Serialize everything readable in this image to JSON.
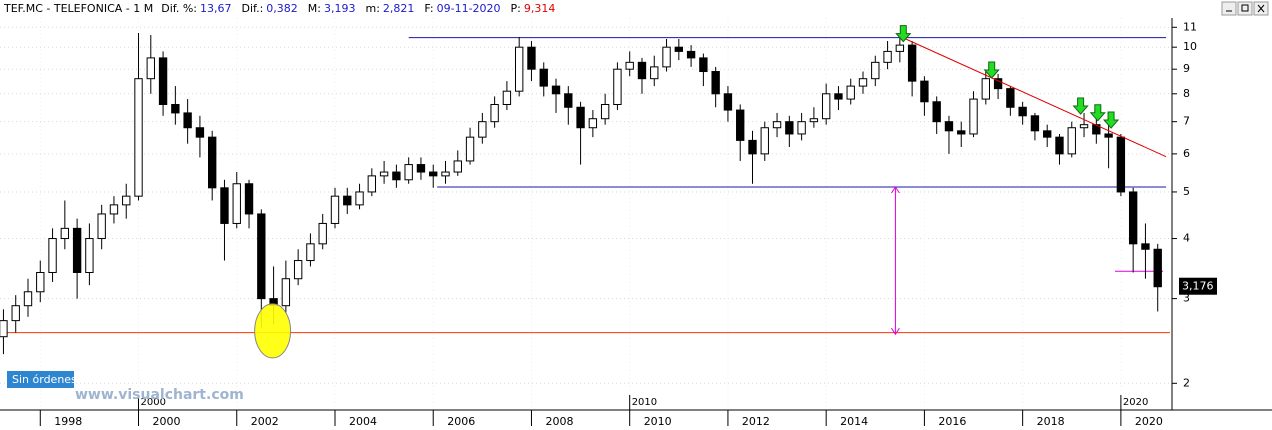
{
  "header": {
    "symbol": "TEF.MC - TELEFONICA - 1 M",
    "fields": [
      {
        "label": "Dif. %:",
        "value": "13,67"
      },
      {
        "label": "Dif.:",
        "value": "0,382"
      },
      {
        "label": "M:",
        "value": "3,193"
      },
      {
        "label": "m:",
        "value": "2,821"
      },
      {
        "label": "F:",
        "value": "09-11-2020"
      },
      {
        "label": "P:",
        "value": "9,314"
      }
    ]
  },
  "button": "Sin órdenes",
  "watermark": "www.visualchart.com",
  "chart_data": {
    "type": "candlestick",
    "log_scale": true,
    "grid": true,
    "xlim": [
      1997.18,
      2021.0
    ],
    "xticks": [
      1998,
      2000,
      2002,
      2004,
      2006,
      2008,
      2010,
      2012,
      2014,
      2016,
      2018,
      2020
    ],
    "decade_ticks": [
      2000,
      2010,
      2020
    ],
    "ylim": [
      1.76,
      11.5
    ],
    "yticks": [
      2,
      3,
      4,
      5,
      6,
      7,
      8,
      9,
      10,
      11
    ],
    "x": [
      1997.25,
      1997.5,
      1997.75,
      1998,
      1998.25,
      1998.5,
      1998.75,
      1999,
      1999.25,
      1999.5,
      1999.75,
      2000,
      2000.25,
      2000.5,
      2000.75,
      2001,
      2001.25,
      2001.5,
      2001.75,
      2002,
      2002.25,
      2002.5,
      2002.75,
      2003,
      2003.25,
      2003.5,
      2003.75,
      2004,
      2004.25,
      2004.5,
      2004.75,
      2005,
      2005.25,
      2005.5,
      2005.75,
      2006,
      2006.25,
      2006.5,
      2006.75,
      2007,
      2007.25,
      2007.5,
      2007.75,
      2008,
      2008.25,
      2008.5,
      2008.75,
      2009,
      2009.25,
      2009.5,
      2009.75,
      2010,
      2010.25,
      2010.5,
      2010.75,
      2011,
      2011.25,
      2011.5,
      2011.75,
      2012,
      2012.25,
      2012.5,
      2012.75,
      2013,
      2013.25,
      2013.5,
      2013.75,
      2014,
      2014.25,
      2014.5,
      2014.75,
      2015,
      2015.25,
      2015.5,
      2015.75,
      2016,
      2016.25,
      2016.5,
      2016.75,
      2017,
      2017.25,
      2017.5,
      2017.75,
      2018,
      2018.25,
      2018.5,
      2018.75,
      2019,
      2019.25,
      2019.5,
      2019.75,
      2020,
      2020.25,
      2020.5,
      2020.75
    ],
    "open": [
      2.5,
      2.7,
      2.9,
      3.1,
      3.4,
      4.0,
      4.2,
      3.4,
      4.0,
      4.5,
      4.7,
      4.9,
      8.6,
      9.5,
      7.6,
      7.3,
      6.8,
      6.5,
      5.1,
      4.3,
      5.2,
      4.5,
      3.0,
      2.9,
      3.3,
      3.6,
      3.9,
      4.3,
      4.9,
      4.7,
      5.0,
      5.4,
      5.5,
      5.3,
      5.7,
      5.5,
      5.4,
      5.5,
      5.8,
      6.5,
      7.0,
      7.6,
      8.1,
      10.0,
      9.0,
      8.3,
      8.0,
      7.5,
      6.8,
      7.1,
      7.6,
      9.0,
      9.3,
      8.6,
      9.1,
      10.0,
      9.8,
      9.5,
      8.9,
      8.0,
      7.4,
      6.4,
      6.0,
      6.8,
      7.0,
      6.6,
      7.0,
      7.1,
      8.0,
      7.8,
      8.3,
      8.6,
      9.3,
      9.8,
      10.1,
      8.5,
      7.7,
      7.0,
      6.7,
      6.6,
      7.8,
      8.6,
      8.2,
      7.5,
      7.2,
      6.7,
      6.5,
      6.0,
      6.8,
      6.9,
      6.6,
      6.5,
      5.0,
      3.9,
      3.8
    ],
    "high": [
      2.85,
      3.05,
      3.3,
      3.6,
      4.2,
      4.8,
      4.4,
      4.3,
      4.7,
      4.9,
      5.2,
      10.7,
      10.6,
      9.8,
      8.3,
      7.8,
      7.2,
      6.7,
      5.3,
      5.5,
      5.3,
      4.6,
      3.5,
      3.6,
      3.8,
      4.1,
      4.5,
      5.1,
      5.1,
      5.2,
      5.6,
      5.8,
      5.7,
      5.9,
      5.9,
      5.7,
      5.8,
      6.1,
      6.8,
      7.3,
      7.9,
      8.5,
      10.5,
      10.3,
      9.3,
      8.6,
      8.3,
      7.7,
      7.4,
      8.0,
      9.3,
      9.8,
      9.5,
      9.6,
      10.4,
      10.4,
      10.1,
      9.7,
      9.1,
      8.3,
      7.6,
      6.7,
      7.0,
      7.3,
      7.2,
      7.3,
      7.5,
      8.4,
      8.3,
      8.6,
      8.9,
      9.6,
      10.3,
      10.6,
      10.3,
      8.7,
      7.9,
      7.2,
      7.0,
      8.1,
      8.9,
      8.8,
      8.3,
      7.7,
      7.3,
      6.9,
      6.6,
      7.0,
      7.3,
      7.1,
      6.9,
      6.6,
      5.1,
      4.3,
      3.9
    ],
    "low": [
      2.3,
      2.55,
      2.75,
      2.95,
      3.25,
      3.8,
      3.0,
      3.2,
      3.8,
      4.3,
      4.4,
      4.8,
      8.0,
      7.2,
      6.9,
      6.3,
      5.9,
      4.8,
      3.6,
      4.2,
      4.2,
      2.6,
      2.65,
      2.8,
      3.2,
      3.5,
      3.8,
      4.2,
      4.5,
      4.6,
      4.9,
      5.2,
      5.1,
      5.2,
      5.3,
      5.1,
      5.2,
      5.4,
      5.7,
      6.3,
      6.8,
      7.4,
      7.9,
      8.5,
      7.9,
      7.3,
      6.9,
      5.7,
      6.5,
      6.9,
      7.4,
      8.7,
      8.0,
      8.3,
      8.9,
      9.4,
      9.1,
      8.3,
      7.5,
      7.0,
      5.8,
      5.2,
      5.8,
      6.5,
      6.2,
      6.4,
      6.8,
      6.9,
      7.4,
      7.6,
      8.0,
      8.3,
      9.0,
      9.3,
      7.9,
      7.2,
      6.6,
      6.0,
      6.2,
      6.5,
      7.6,
      7.8,
      7.2,
      6.9,
      6.4,
      6.2,
      5.7,
      5.9,
      6.5,
      6.3,
      5.6,
      4.9,
      3.4,
      3.3,
      2.821
    ],
    "close": [
      2.7,
      2.9,
      3.1,
      3.4,
      4.0,
      4.2,
      3.4,
      4.0,
      4.5,
      4.7,
      4.9,
      8.6,
      9.5,
      7.6,
      7.3,
      6.8,
      6.5,
      5.1,
      4.3,
      5.2,
      4.5,
      3.0,
      2.9,
      3.3,
      3.6,
      3.9,
      4.3,
      4.9,
      4.7,
      5.0,
      5.4,
      5.5,
      5.3,
      5.7,
      5.5,
      5.4,
      5.5,
      5.8,
      6.5,
      7.0,
      7.6,
      8.1,
      10.0,
      9.0,
      8.3,
      8.0,
      7.5,
      6.8,
      7.1,
      7.6,
      9.0,
      9.3,
      8.6,
      9.1,
      10.0,
      9.8,
      9.5,
      8.9,
      8.0,
      7.4,
      6.4,
      6.0,
      6.8,
      7.0,
      6.6,
      7.0,
      7.1,
      8.0,
      7.8,
      8.3,
      8.6,
      9.3,
      9.8,
      10.1,
      8.5,
      7.7,
      7.0,
      6.7,
      6.6,
      7.8,
      8.6,
      8.2,
      7.5,
      7.2,
      6.7,
      6.5,
      6.0,
      6.8,
      6.9,
      6.6,
      6.5,
      5.0,
      3.9,
      3.8,
      3.176
    ],
    "last_price": {
      "value": 3.176,
      "label": "3,176"
    },
    "hlines": [
      {
        "value": 10.47,
        "x": [
          2005.5,
          2020.92
        ],
        "color": "#1a1aa8"
      },
      {
        "value": 5.12,
        "x": [
          2006.08,
          2020.92
        ],
        "color": "#1a1aa8"
      },
      {
        "value": 2.55,
        "x": [
          1997.18,
          2021.0
        ],
        "color": "#ff3300"
      },
      {
        "value": 3.42,
        "x": [
          2019.88,
          2020.86
        ],
        "color": "#e000e0"
      }
    ],
    "trendline": {
      "x": [
        2015.53,
        2020.92
      ],
      "y": [
        10.5,
        5.92
      ],
      "color": "#e00000"
    },
    "range_arrow": {
      "x": 2015.41,
      "y": [
        5.12,
        2.53
      ],
      "color": "#e000e0"
    },
    "signals": {
      "x": [
        2015.57,
        2017.37,
        2019.18,
        2019.53,
        2019.8
      ],
      "y": [
        10.27,
        8.63,
        7.26,
        7.03,
        6.79
      ],
      "color": "#22dd22"
    },
    "highlight": {
      "x": 2002.73,
      "y": 2.57,
      "color": "#ffff00"
    }
  }
}
